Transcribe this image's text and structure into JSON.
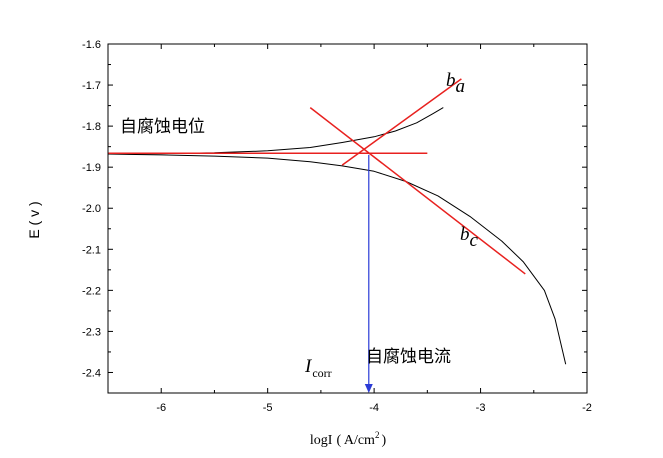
{
  "chart_data": {
    "type": "line",
    "title": "",
    "xlabel": "logI",
    "xlabel_unit": "( A/cm",
    "xlabel_sup": "2",
    "xlabel_close": ")",
    "ylabel": "E ( v )",
    "xlim": [
      -6.5,
      -2
    ],
    "ylim": [
      -2.45,
      -1.6
    ],
    "xticks": [
      -6,
      -5,
      -4,
      -3,
      -2
    ],
    "yticks": [
      -1.6,
      -1.7,
      -1.8,
      -1.9,
      -2.0,
      -2.1,
      -2.2,
      -2.3,
      -2.4
    ],
    "xtick_labels": [
      "-6",
      "-5",
      "-4",
      "-3",
      "-2"
    ],
    "ytick_labels": [
      "-1.6",
      "-1.7",
      "-1.8",
      "-1.9",
      "-2.0",
      "-2.1",
      "-2.2",
      "-2.3",
      "-2.4"
    ],
    "grid": false,
    "series": [
      {
        "role": "anodic-branch",
        "color": "#000000",
        "x": [
          -6.5,
          -6.0,
          -5.5,
          -5.0,
          -4.6,
          -4.3,
          -4.0,
          -3.8,
          -3.6,
          -3.45,
          -3.35
        ],
        "y": [
          -1.868,
          -1.867,
          -1.865,
          -1.86,
          -1.852,
          -1.84,
          -1.826,
          -1.812,
          -1.792,
          -1.77,
          -1.755
        ]
      },
      {
        "role": "cathodic-branch",
        "color": "#000000",
        "x": [
          -6.5,
          -6.0,
          -5.5,
          -5.0,
          -4.6,
          -4.3,
          -4.0,
          -3.7,
          -3.4,
          -3.1,
          -2.8,
          -2.6,
          -2.4,
          -2.3,
          -2.2
        ],
        "y": [
          -1.868,
          -1.87,
          -1.873,
          -1.878,
          -1.887,
          -1.897,
          -1.91,
          -1.935,
          -1.97,
          -2.02,
          -2.08,
          -2.13,
          -2.2,
          -2.27,
          -2.38
        ]
      }
    ],
    "tangent_lines": [
      {
        "role": "corrosion-potential-line",
        "color": "#e8211f",
        "x": [
          -6.5,
          -3.5
        ],
        "y": [
          -1.866,
          -1.866
        ]
      },
      {
        "role": "anodic-tafel-line",
        "color": "#e8211f",
        "x": [
          -4.3,
          -3.18
        ],
        "y": [
          -1.895,
          -1.685
        ]
      },
      {
        "role": "cathodic-tafel-line",
        "color": "#e8211f",
        "x": [
          -4.6,
          -2.58
        ],
        "y": [
          -1.755,
          -2.16
        ]
      }
    ],
    "corrosion_current_arrow": {
      "color": "#2b3bd6",
      "x": -4.05,
      "y_from": -1.87,
      "y_to": -2.45
    },
    "annotations": [
      {
        "text": "自腐蚀电位",
        "kind": "cn"
      },
      {
        "text": "自腐蚀电流",
        "kind": "cn"
      },
      {
        "text": "b",
        "sub": "a",
        "kind": "italic"
      },
      {
        "text": "b",
        "sub": "c",
        "kind": "italic"
      },
      {
        "text": "I",
        "sub": "corr",
        "kind": "italic"
      }
    ]
  }
}
